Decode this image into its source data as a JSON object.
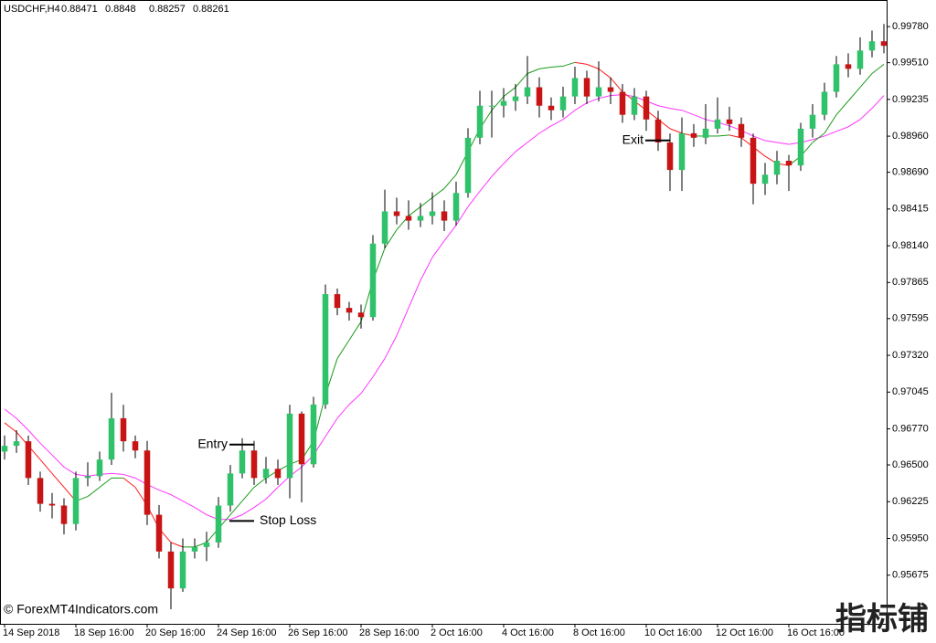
{
  "chart_data": {
    "type": "candlestick",
    "header": {
      "symbol": "USDCHF,H4",
      "ohlc": [
        0.88471,
        0.8848,
        0.88257,
        0.88261
      ]
    },
    "copyright": "© ForexMT4Indicators.com",
    "watermark": "指标铺",
    "up_color": "#2fc26b",
    "down_color": "#c81414",
    "wick_color": "#000000",
    "open": [
      0.966,
      0.96643,
      0.96677,
      0.96402,
      0.96209,
      0.96196,
      0.96058,
      0.96402,
      0.96416,
      0.9654,
      0.96849,
      0.96677,
      0.96608,
      0.96127,
      0.95852,
      0.95576,
      0.95852,
      0.95886,
      0.9592,
      0.96196,
      0.96436,
      0.96608,
      0.96402,
      0.96471,
      0.96402,
      0.96884,
      0.96505,
      0.96952,
      0.97778,
      0.97675,
      0.9764,
      0.97606,
      0.98156,
      0.98397,
      0.98363,
      0.98328,
      0.98363,
      0.98397,
      0.98328,
      0.98535,
      0.98948,
      0.99188,
      0.99188,
      0.99223,
      0.99257,
      0.99326,
      0.99188,
      0.99154,
      0.99257,
      0.99395,
      0.99257,
      0.99326,
      0.99292,
      0.9912,
      0.99257,
      0.99085,
      0.98913,
      0.98707,
      0.98982,
      0.98948,
      0.99016,
      0.99085,
      0.99051,
      0.98948,
      0.98604,
      0.98672,
      0.98776,
      0.98741,
      0.99016,
      0.9912,
      0.99292,
      0.99498,
      0.99464,
      0.99601,
      0.9967
    ],
    "high": [
      0.9672,
      0.9676,
      0.9672,
      0.9645,
      0.9629,
      0.9625,
      0.9645,
      0.9652,
      0.966,
      0.9704,
      0.9695,
      0.9672,
      0.9668,
      0.962,
      0.9592,
      0.9595,
      0.9595,
      0.96,
      0.9626,
      0.965,
      0.967,
      0.9668,
      0.9656,
      0.9654,
      0.9695,
      0.969,
      0.9701,
      0.9785,
      0.9782,
      0.9772,
      0.977,
      0.9822,
      0.9856,
      0.985,
      0.9848,
      0.9846,
      0.9854,
      0.9848,
      0.9862,
      0.9902,
      0.993,
      0.993,
      0.9932,
      0.9935,
      0.9956,
      0.994,
      0.9925,
      0.9933,
      0.9948,
      0.9945,
      0.9952,
      0.994,
      0.9935,
      0.9932,
      0.993,
      0.9915,
      0.9898,
      0.991,
      0.9905,
      0.992,
      0.9925,
      0.9918,
      0.991,
      0.9898,
      0.9876,
      0.9885,
      0.9882,
      0.9906,
      0.992,
      0.9936,
      0.9956,
      0.9958,
      0.997,
      0.9975,
      0.998
    ],
    "low": [
      0.9654,
      0.9659,
      0.9635,
      0.9615,
      0.961,
      0.9598,
      0.9601,
      0.9634,
      0.9638,
      0.965,
      0.966,
      0.9655,
      0.9605,
      0.958,
      0.9542,
      0.9555,
      0.958,
      0.9578,
      0.9588,
      0.9615,
      0.964,
      0.9635,
      0.9636,
      0.9635,
      0.9625,
      0.9622,
      0.9648,
      0.9692,
      0.9762,
      0.9758,
      0.9752,
      0.9758,
      0.9812,
      0.983,
      0.9826,
      0.9828,
      0.983,
      0.9825,
      0.9829,
      0.985,
      0.989,
      0.9895,
      0.991,
      0.9915,
      0.992,
      0.991,
      0.9908,
      0.991,
      0.992,
      0.992,
      0.9922,
      0.992,
      0.9906,
      0.9908,
      0.99,
      0.9885,
      0.9855,
      0.9855,
      0.9888,
      0.989,
      0.9898,
      0.99,
      0.9888,
      0.9845,
      0.9852,
      0.986,
      0.9855,
      0.987,
      0.9895,
      0.9908,
      0.9925,
      0.994,
      0.9942,
      0.9955,
      0.9958
    ],
    "close": [
      0.96643,
      0.96677,
      0.96402,
      0.96209,
      0.96196,
      0.96058,
      0.96402,
      0.96416,
      0.9654,
      0.96849,
      0.96677,
      0.96608,
      0.96127,
      0.95852,
      0.95576,
      0.95852,
      0.95886,
      0.9592,
      0.96196,
      0.96436,
      0.96608,
      0.96402,
      0.96471,
      0.96402,
      0.96884,
      0.96505,
      0.96952,
      0.97778,
      0.97675,
      0.9764,
      0.97606,
      0.98156,
      0.98397,
      0.98363,
      0.98328,
      0.98363,
      0.98397,
      0.98328,
      0.98535,
      0.98948,
      0.99188,
      0.99188,
      0.99223,
      0.99257,
      0.99326,
      0.99188,
      0.99154,
      0.99257,
      0.99395,
      0.99257,
      0.99326,
      0.99292,
      0.9912,
      0.99257,
      0.99085,
      0.98913,
      0.98707,
      0.98982,
      0.98948,
      0.99016,
      0.99085,
      0.99051,
      0.98948,
      0.98604,
      0.98672,
      0.98776,
      0.98741,
      0.99016,
      0.9912,
      0.99292,
      0.99498,
      0.99464,
      0.99601,
      0.9967,
      0.99636
    ],
    "lines": [
      {
        "color": "#ff33ff",
        "values": [
          0.96918,
          0.96849,
          0.9676,
          0.96663,
          0.96574,
          0.96484,
          0.96429,
          0.96416,
          0.96429,
          0.96436,
          0.96429,
          0.96402,
          0.96354,
          0.96312,
          0.96278,
          0.9623,
          0.96182,
          0.96127,
          0.96092,
          0.96092,
          0.96127,
          0.96182,
          0.96244,
          0.96333,
          0.96416,
          0.96484,
          0.96574,
          0.96712,
          0.96849,
          0.96952,
          0.97035,
          0.97159,
          0.97296,
          0.97468,
          0.97675,
          0.97881,
          0.98053,
          0.98177,
          0.98294,
          0.98432,
          0.98548,
          0.98659,
          0.98755,
          0.98844,
          0.98913,
          0.98982,
          0.99037,
          0.99085,
          0.99154,
          0.99209,
          0.99243,
          0.99264,
          0.99271,
          0.99257,
          0.99223,
          0.99188,
          0.99168,
          0.99154,
          0.9912,
          0.99085,
          0.99064,
          0.99037,
          0.99003,
          0.98961,
          0.98927,
          0.98913,
          0.98899,
          0.98913,
          0.98934,
          0.98961,
          0.98996,
          0.9903,
          0.99085,
          0.99168,
          0.99264
        ]
      },
      {
        "color": "#1a9a1a",
        "down_color": "#ff1a1a",
        "values": [
          0.96815,
          0.96746,
          0.96643,
          0.9654,
          0.96436,
          0.96333,
          0.9623,
          0.96264,
          0.96333,
          0.96402,
          0.96402,
          0.96333,
          0.96196,
          0.96024,
          0.9592,
          0.95886,
          0.95886,
          0.9592,
          0.96024,
          0.96127,
          0.9623,
          0.96333,
          0.96402,
          0.96457,
          0.96505,
          0.9654,
          0.96677,
          0.97021,
          0.97296,
          0.97434,
          0.97572,
          0.97881,
          0.98122,
          0.9826,
          0.98363,
          0.98432,
          0.985,
          0.98569,
          0.98672,
          0.98844,
          0.99016,
          0.99154,
          0.99257,
          0.99326,
          0.99429,
          0.99464,
          0.99477,
          0.99484,
          0.99512,
          0.99498,
          0.99464,
          0.99395,
          0.99292,
          0.99223,
          0.99154,
          0.99085,
          0.99016,
          0.98982,
          0.98961,
          0.98961,
          0.98961,
          0.98968,
          0.98948,
          0.98879,
          0.9881,
          0.98755,
          0.98741,
          0.9881,
          0.98913,
          0.98982,
          0.9912,
          0.99223,
          0.99326,
          0.99429,
          0.99498
        ]
      }
    ],
    "annotations": [
      {
        "text": "Entry",
        "value": 0.96652,
        "x": 20
      },
      {
        "text": "Stop Loss",
        "value": 0.96081,
        "x": 20
      },
      {
        "text": "Exit",
        "value": 0.98928,
        "x": 55
      }
    ],
    "xlim": [
      -0.385,
      74.23
    ],
    "ylim": [
      0.95311,
      0.99979
    ],
    "yticks": [
      {
        "value": 0.9978,
        "label": "0.99780"
      },
      {
        "value": 0.9951,
        "label": "0.99510"
      },
      {
        "value": 0.99235,
        "label": "0.99235"
      },
      {
        "value": 0.9896,
        "label": "0.98960"
      },
      {
        "value": 0.9869,
        "label": "0.98690"
      },
      {
        "value": 0.98415,
        "label": "0.98415"
      },
      {
        "value": 0.9814,
        "label": "0.98140"
      },
      {
        "value": 0.97865,
        "label": "0.97865"
      },
      {
        "value": 0.97595,
        "label": "0.97595"
      },
      {
        "value": 0.9732,
        "label": "0.97320"
      },
      {
        "value": 0.97045,
        "label": "0.97045"
      },
      {
        "value": 0.9677,
        "label": "0.96770"
      },
      {
        "value": 0.965,
        "label": "0.96500"
      },
      {
        "value": 0.96225,
        "label": "0.96225"
      },
      {
        "value": 0.9595,
        "label": "0.95950"
      },
      {
        "value": 0.95675,
        "label": "0.95675"
      }
    ],
    "xticks": [
      {
        "value": 0,
        "label": "14 Sep 2018"
      },
      {
        "value": 6,
        "label": "18 Sep 16:00"
      },
      {
        "value": 12,
        "label": "20 Sep 16:00"
      },
      {
        "value": 18,
        "label": "24 Sep 16:00"
      },
      {
        "value": 24,
        "label": "26 Sep 16:00"
      },
      {
        "value": 30,
        "label": "28 Sep 16:00"
      },
      {
        "value": 36,
        "label": "2 Oct 16:00"
      },
      {
        "value": 42,
        "label": "4 Oct 16:00"
      },
      {
        "value": 48,
        "label": "8 Oct 16:00"
      },
      {
        "value": 54,
        "label": "10 Oct 16:00"
      },
      {
        "value": 60,
        "label": "12 Oct 16:00"
      },
      {
        "value": 66,
        "label": "16 Oct 16:00"
      }
    ]
  }
}
